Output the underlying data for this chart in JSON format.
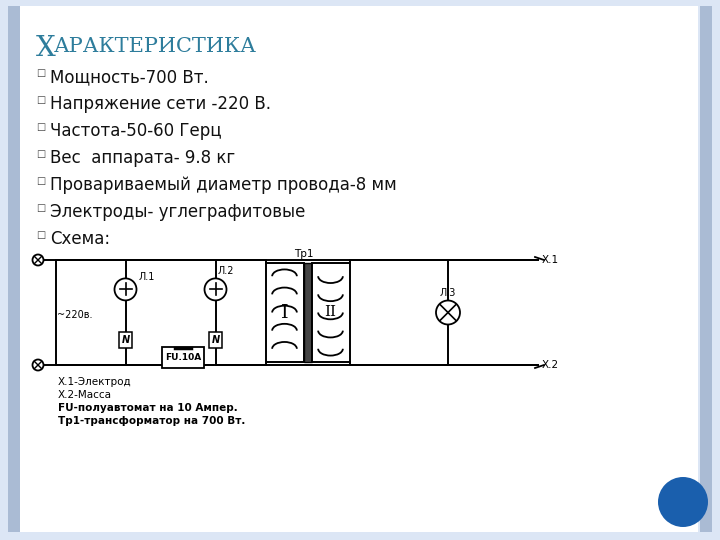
{
  "title_first": "Х",
  "title_rest": "АРАКТЕРИСТИКА",
  "title_color": "#2E7D9C",
  "title_fontsize_big": 20,
  "title_fontsize_small": 15,
  "background_color": "#dce6f5",
  "slide_bg": "#ffffff",
  "bullet_char": "□",
  "bullet_fontsize": 12,
  "bullet_items": [
    "Мощность-700 Вт.",
    "Напряжение сети -220 В.",
    "Частота-50-60 Герц",
    "Вес  аппарата- 9.8 кг",
    "Провариваемый диаметр провода-8 мм",
    "Электроды- углеграфитовые",
    "Схема:"
  ],
  "legend_lines": [
    [
      "Х.1-Электрод",
      false
    ],
    [
      "Х.2-Масса",
      false
    ],
    [
      "FU-полуавтомат на 10 Ампер.",
      true
    ],
    [
      "Тр1-трансформатор на 700 Вт.",
      true
    ]
  ],
  "circle_color": "#1a5fad",
  "left_border_color": "#aabbd4",
  "right_border_color": "#aabbd4"
}
